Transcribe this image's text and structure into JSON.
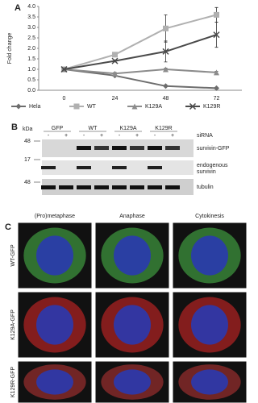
{
  "chart_data": {
    "type": "line",
    "panel": "A",
    "ylabel": "Fold change",
    "categories": [
      "0",
      "24",
      "48",
      "72"
    ],
    "ylim": [
      0,
      4
    ],
    "yticks": [
      {
        "value": 0,
        "label": "0.0"
      },
      {
        "value": 0.5,
        "label": "0.5"
      },
      {
        "value": 1,
        "label": "1.0"
      },
      {
        "value": 1.5,
        "label": "1.5"
      },
      {
        "value": 2,
        "label": "2.0"
      },
      {
        "value": 2.5,
        "label": "2.5"
      },
      {
        "value": 3,
        "label": "3.0"
      },
      {
        "value": 3.5,
        "label": "3.5"
      },
      {
        "value": 4,
        "label": "4.0"
      }
    ],
    "grid": false,
    "legend": "bottom",
    "series": [
      {
        "name": "Hela",
        "color": "#6d6d6d",
        "marker": "diamond",
        "values": [
          1,
          0.7,
          0.2,
          0.1
        ],
        "errors": [
          0,
          0.03,
          0.03,
          0.02
        ]
      },
      {
        "name": "WT",
        "color": "#b0b0b0",
        "marker": "square",
        "values": [
          1,
          1.7,
          2.95,
          3.6
        ],
        "errors": [
          0,
          0.05,
          0.65,
          0.35
        ]
      },
      {
        "name": "K129A",
        "color": "#8c8c8c",
        "marker": "triangle",
        "values": [
          1,
          0.8,
          1.0,
          0.85
        ],
        "errors": [
          0,
          0.05,
          0.05,
          0.05
        ]
      },
      {
        "name": "K129R",
        "color": "#4a4a4a",
        "marker": "cross",
        "values": [
          1,
          1.4,
          1.85,
          2.65
        ],
        "errors": [
          0,
          0.05,
          0.5,
          0.6
        ]
      }
    ]
  },
  "panel_b": {
    "label": "B",
    "kda": "kDa",
    "groups": [
      "GFP",
      "WT",
      "K129A",
      "K129R"
    ],
    "sirna": "siRNA",
    "signs": [
      "-",
      "+",
      "-",
      "+",
      "-",
      "+",
      "-",
      "+"
    ],
    "markers": [
      "48",
      "17",
      "48"
    ],
    "bands": [
      "survivin-GFP",
      "endogenous survivin",
      "tubulin"
    ]
  },
  "panel_c": {
    "label": "C",
    "columns": [
      "(Pro)metaphase",
      "Anaphase",
      "Cytokinesis"
    ],
    "rows": [
      "WT-GFP",
      "K129A-GFP",
      "K129R-GFP"
    ]
  }
}
